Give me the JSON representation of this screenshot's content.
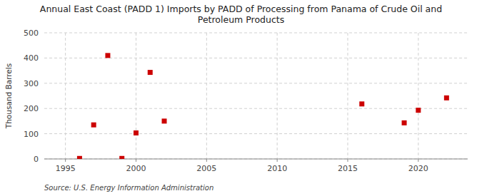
{
  "chart_data": {
    "type": "scatter",
    "title": "Annual East Coast (PADD 1) Imports by PADD of Processing from Panama of Crude Oil and\nPetroleum Products",
    "ylabel": "Thousand Barrels",
    "source": "Source: U.S. Energy Information Administration",
    "x": [
      1996,
      1997,
      1998,
      1999,
      2000,
      2001,
      2002,
      2016,
      2019,
      2020,
      2022
    ],
    "values": [
      2,
      135,
      410,
      2,
      103,
      343,
      150,
      218,
      143,
      193,
      242
    ],
    "color": "#cc0000",
    "marker": "square",
    "xlim": [
      1993.5,
      2023.5
    ],
    "ylim": [
      0,
      500
    ],
    "xticks": [
      1995,
      2000,
      2005,
      2010,
      2015,
      2020
    ],
    "yticks": [
      0,
      100,
      200,
      300,
      400,
      500
    ],
    "grid": true
  }
}
